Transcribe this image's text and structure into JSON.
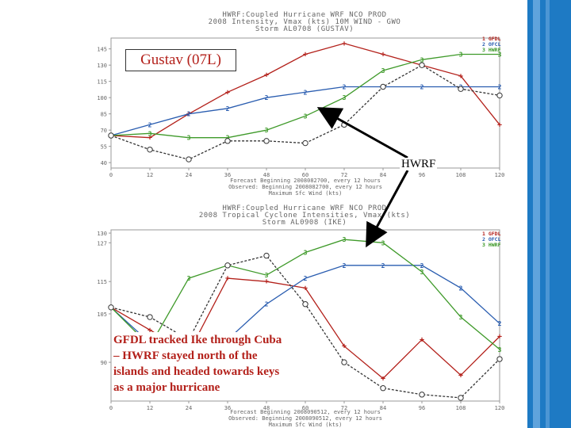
{
  "slide": {
    "title_overlay": "Gustav (07L)",
    "hwrf_label": "HWRF",
    "note_lines": [
      "GFDL tracked Ike through Cuba",
      "– HWRF stayed north of the",
      "islands and headed towards keys",
      "as a major hurricane"
    ],
    "colors": {
      "background": "#1e7ac4",
      "gfdl": "#b3201a",
      "ofcl": "#2a5db0",
      "hwrf": "#3f9a2a",
      "best_track": "#333333"
    }
  },
  "chart_data": [
    {
      "type": "line",
      "header_lines": [
        "HWRF:Coupled Hurricane WRF NCO PROD",
        "2008 Intensity, Vmax (kts) 10M WIND - GWO",
        "Storm AL0708 (GUSTAV)"
      ],
      "x": [
        0,
        12,
        24,
        36,
        48,
        60,
        72,
        84,
        96,
        108,
        120
      ],
      "x_ticks": [
        "0",
        "12",
        "24",
        "36",
        "48",
        "60",
        "72",
        "84",
        "96",
        "108",
        "120"
      ],
      "y_ticks": [
        "40",
        "55",
        "70",
        "85",
        "100",
        "115",
        "130",
        "145"
      ],
      "ylim": [
        35,
        155
      ],
      "footer_lines": [
        "Forecast Beginning 2008082700, every 12 hours",
        "Observed: Beginning 2008082700, every 12 hours",
        "Maximum Sfc Wind (kts)"
      ],
      "legend": [
        {
          "num": "1",
          "name": "GFDL"
        },
        {
          "num": "2",
          "name": "OFCL"
        },
        {
          "num": "3",
          "name": "HWRF"
        }
      ],
      "series": [
        {
          "name": "GFDL",
          "marker": "+",
          "values": [
            65,
            63,
            85,
            105,
            121,
            140,
            150,
            140,
            130,
            120,
            75
          ]
        },
        {
          "name": "OFCL",
          "marker": "2",
          "values": [
            65,
            75,
            85,
            90,
            100,
            105,
            110,
            110,
            110,
            110,
            110
          ]
        },
        {
          "name": "HWRF",
          "marker": "3",
          "values": [
            65,
            67,
            63,
            63,
            70,
            83,
            100,
            125,
            135,
            140,
            140
          ]
        },
        {
          "name": "Best track",
          "marker": "O",
          "values": [
            65,
            52,
            43,
            60,
            60,
            58,
            75,
            110,
            130,
            108,
            102
          ]
        }
      ]
    },
    {
      "type": "line",
      "header_lines": [
        "HWRF:Coupled Hurricane WRF NCO PROD",
        "2008 Tropical Cyclone Intensities, Vmax (kts)",
        "Storm AL0908 (IKE)"
      ],
      "x": [
        0,
        12,
        24,
        36,
        48,
        60,
        72,
        84,
        96,
        108,
        120
      ],
      "x_ticks": [
        "0",
        "12",
        "24",
        "36",
        "48",
        "60",
        "72",
        "84",
        "96",
        "108",
        "120"
      ],
      "y_ticks": [
        "90",
        "105",
        "115",
        "127",
        "130"
      ],
      "ylim": [
        78,
        131
      ],
      "footer_lines": [
        "Forecast Beginning 2008090512, every 12 hours",
        "Observed: Beginning 2008090512, every 12 hours",
        "Maximum Sfc Wind (kts)"
      ],
      "legend": [
        {
          "num": "1",
          "name": "GFDL"
        },
        {
          "num": "2",
          "name": "OFCL"
        },
        {
          "num": "3",
          "name": "HWRF"
        }
      ],
      "series": [
        {
          "name": "GFDL",
          "marker": "+",
          "values": [
            107,
            100,
            93,
            116,
            115,
            113,
            95,
            85,
            97,
            86,
            98
          ]
        },
        {
          "name": "OFCL",
          "marker": "2",
          "values": [
            107,
            96,
            92,
            97,
            108,
            116,
            120,
            120,
            120,
            113,
            102
          ]
        },
        {
          "name": "HWRF",
          "marker": "3",
          "values": [
            107,
            95,
            116,
            120,
            117,
            124,
            128,
            127,
            118,
            104,
            94
          ]
        },
        {
          "name": "Best track",
          "marker": "O",
          "values": [
            107,
            104,
            97,
            120,
            123,
            108,
            90,
            82,
            80,
            79,
            91
          ]
        }
      ]
    }
  ]
}
